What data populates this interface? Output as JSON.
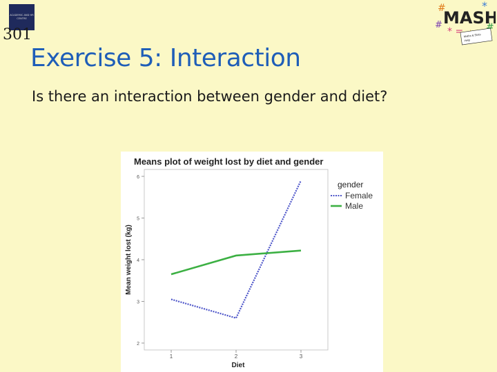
{
  "logo_left": {
    "box_text": "ACADEMIC AND HR CENTRE",
    "number": "301"
  },
  "logo_right": {
    "brand": "MASH",
    "tagline": "Mathematics and Statistics Help"
  },
  "slide": {
    "title": "Exercise 5: Interaction",
    "subtitle": "Is there an interaction between gender and diet?"
  },
  "chart_data": {
    "type": "line",
    "title": "Means plot of weight lost by diet and gender",
    "xlabel": "Diet",
    "ylabel": "Mean weight lost (kg)",
    "categories": [
      "1",
      "2",
      "3"
    ],
    "ylim": [
      2,
      6
    ],
    "yticks": [
      "2",
      "3",
      "4",
      "5",
      "6"
    ],
    "legend_title": "gender",
    "legend_position": "right",
    "grid": false,
    "series": [
      {
        "name": "Female",
        "values": [
          3.05,
          2.6,
          5.9
        ],
        "color": "#4a52c8",
        "style": "dotted"
      },
      {
        "name": "Male",
        "values": [
          3.65,
          4.1,
          4.22
        ],
        "color": "#3cb043",
        "style": "solid"
      }
    ]
  }
}
